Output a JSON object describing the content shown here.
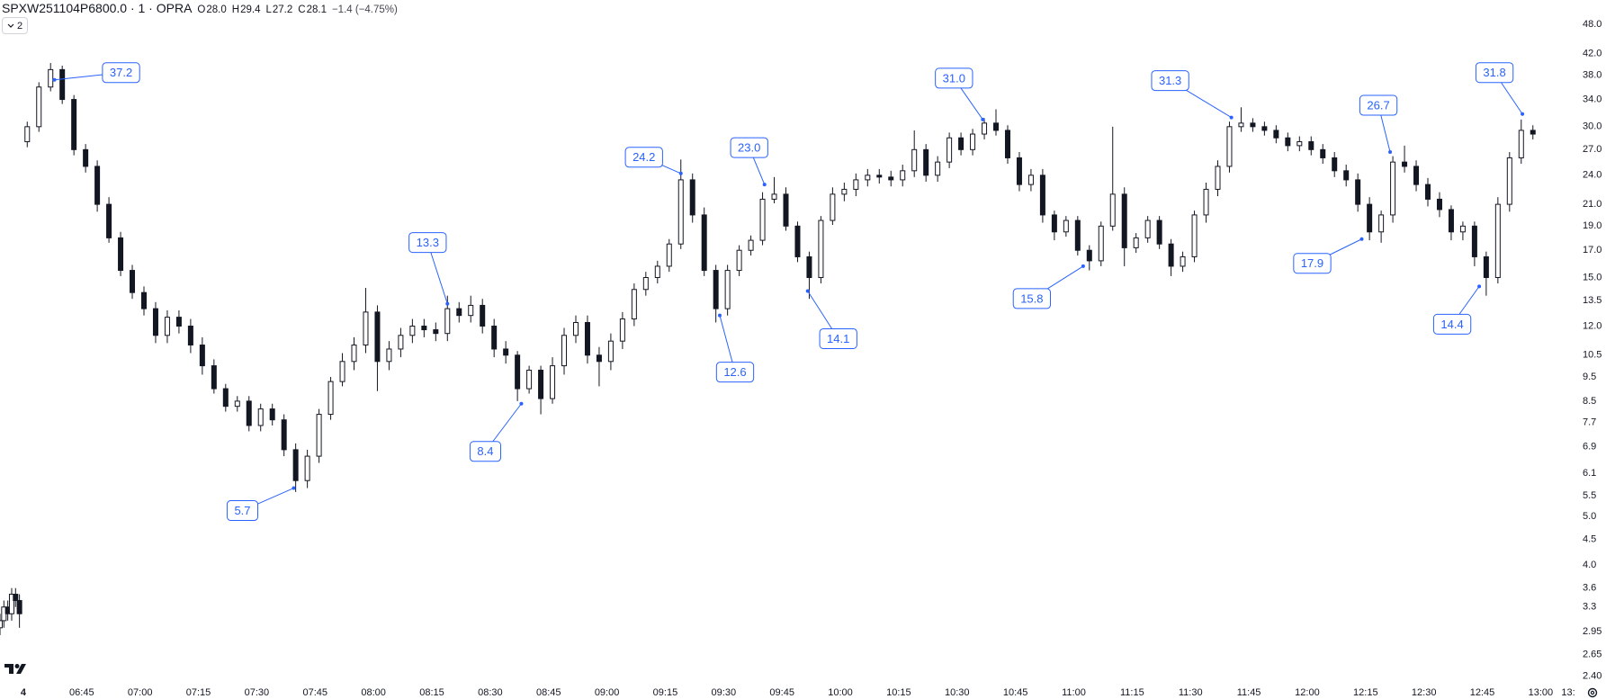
{
  "header": {
    "symbol": "SPXW251104P6800.0 · 1 · OPRA",
    "ohlc": [
      {
        "key": "O",
        "value": "28.0"
      },
      {
        "key": "H",
        "value": "29.4"
      },
      {
        "key": "L",
        "value": "27.2"
      },
      {
        "key": "C",
        "value": "28.1"
      }
    ],
    "change": "−1.4 (−4.75%)",
    "button": "2"
  },
  "chart_data": {
    "type": "candlestick",
    "log_scale": true,
    "grid": false,
    "up_color": "#ffffff",
    "down_color": "#131722",
    "border_color": "#131722",
    "annotation_color": "#2962ff",
    "xlim": [
      384,
      788
    ],
    "ylim": [
      2.32,
      53.7
    ],
    "xticks": [
      {
        "value": 390,
        "label": "4"
      },
      {
        "value": 405,
        "label": "06:45"
      },
      {
        "value": 420,
        "label": "07:00"
      },
      {
        "value": 435,
        "label": "07:15"
      },
      {
        "value": 450,
        "label": "07:30"
      },
      {
        "value": 465,
        "label": "07:45"
      },
      {
        "value": 480,
        "label": "08:00"
      },
      {
        "value": 495,
        "label": "08:15"
      },
      {
        "value": 510,
        "label": "08:30"
      },
      {
        "value": 525,
        "label": "08:45"
      },
      {
        "value": 540,
        "label": "09:00"
      },
      {
        "value": 555,
        "label": "09:15"
      },
      {
        "value": 570,
        "label": "09:30"
      },
      {
        "value": 585,
        "label": "09:45"
      },
      {
        "value": 600,
        "label": "10:00"
      },
      {
        "value": 615,
        "label": "10:15"
      },
      {
        "value": 630,
        "label": "10:30"
      },
      {
        "value": 645,
        "label": "10:45"
      },
      {
        "value": 660,
        "label": "11:00"
      },
      {
        "value": 675,
        "label": "11:15"
      },
      {
        "value": 690,
        "label": "11:30"
      },
      {
        "value": 705,
        "label": "11:45"
      },
      {
        "value": 720,
        "label": "12:00"
      },
      {
        "value": 735,
        "label": "12:15"
      },
      {
        "value": 750,
        "label": "12:30"
      },
      {
        "value": 765,
        "label": "12:45"
      },
      {
        "value": 780,
        "label": "13:00"
      },
      {
        "value": 795,
        "label": "13:"
      }
    ],
    "yticks": [
      {
        "value": 48,
        "label": "48.0"
      },
      {
        "value": 42,
        "label": "42.0"
      },
      {
        "value": 38,
        "label": "38.0"
      },
      {
        "value": 34,
        "label": "34.0"
      },
      {
        "value": 30,
        "label": "30.0"
      },
      {
        "value": 27,
        "label": "27.0"
      },
      {
        "value": 24,
        "label": "24.0"
      },
      {
        "value": 21,
        "label": "21.0"
      },
      {
        "value": 19,
        "label": "19.0"
      },
      {
        "value": 17,
        "label": "17.0"
      },
      {
        "value": 15,
        "label": "15.0"
      },
      13.5,
      {
        "value": 12,
        "label": "12.0"
      },
      10.5,
      9.5,
      8.5,
      7.7,
      6.9,
      6.1,
      5.5,
      {
        "value": 5,
        "label": "5.0"
      },
      4.5,
      {
        "value": 4,
        "label": "4.0"
      },
      3.6,
      3.3,
      2.95,
      2.65,
      {
        "value": 2.4,
        "label": "2.40"
      }
    ],
    "x": [
      384,
      385,
      386,
      387,
      388,
      389,
      391,
      394,
      397,
      400,
      403,
      406,
      409,
      412,
      415,
      418,
      421,
      424,
      427,
      430,
      433,
      436,
      439,
      442,
      445,
      448,
      451,
      454,
      457,
      460,
      463,
      466,
      469,
      472,
      475,
      478,
      481,
      484,
      487,
      490,
      493,
      496,
      499,
      502,
      505,
      508,
      511,
      514,
      517,
      520,
      523,
      526,
      529,
      532,
      535,
      538,
      541,
      544,
      547,
      550,
      553,
      556,
      559,
      562,
      565,
      568,
      571,
      574,
      577,
      580,
      583,
      586,
      589,
      592,
      595,
      598,
      601,
      604,
      607,
      610,
      613,
      616,
      619,
      622,
      625,
      628,
      631,
      634,
      637,
      640,
      643,
      646,
      649,
      652,
      655,
      658,
      661,
      664,
      667,
      670,
      673,
      676,
      679,
      682,
      685,
      688,
      691,
      694,
      697,
      700,
      703,
      706,
      709,
      712,
      715,
      718,
      721,
      724,
      727,
      730,
      733,
      736,
      739,
      742,
      745,
      748,
      751,
      754,
      757,
      760,
      763,
      766,
      769,
      772,
      775,
      778
    ],
    "open": [
      3.0,
      3.1,
      3.3,
      3.2,
      3.5,
      3.4,
      28,
      30,
      36,
      39,
      34,
      27,
      25,
      21,
      18,
      15.5,
      14,
      13,
      11.5,
      12.5,
      12,
      11,
      10,
      9,
      8.3,
      8.5,
      7.6,
      8.2,
      7.8,
      6.8,
      5.9,
      6.6,
      8,
      9.3,
      10.2,
      11,
      12.8,
      10.2,
      10.8,
      11.5,
      12,
      11.8,
      11.6,
      13,
      12.6,
      13.2,
      12,
      10.8,
      10.5,
      9,
      9.8,
      8.6,
      10,
      11.5,
      12.2,
      10.5,
      10.2,
      11.2,
      12.4,
      14.2,
      15,
      15.8,
      17.5,
      23.5,
      20,
      15.5,
      13,
      15.5,
      17,
      17.8,
      21.5,
      22,
      19,
      16.5,
      15,
      19.5,
      22,
      22.5,
      23.5,
      24,
      23.8,
      23.5,
      24.5,
      27,
      24,
      25.5,
      28.5,
      27,
      29,
      30.5,
      29.5,
      26,
      23,
      24,
      20,
      18.5,
      19.5,
      17,
      16.2,
      19,
      22,
      17.2,
      18,
      19.5,
      17.5,
      15.8,
      16.5,
      20,
      22.5,
      25,
      30,
      30.5,
      30,
      29.5,
      28.5,
      27.5,
      28,
      27,
      26,
      24.5,
      23.5,
      21,
      18.5,
      20,
      25.5,
      25,
      23,
      21.5,
      20.5,
      18.5,
      19,
      16.5,
      15,
      21,
      26,
      29.5
    ],
    "high": [
      3.2,
      3.4,
      3.4,
      3.6,
      3.6,
      3.5,
      30.7,
      36.8,
      40.2,
      39.7,
      34.7,
      27.7,
      25.7,
      21.7,
      18.5,
      15.9,
      14.4,
      13.4,
      12.9,
      12.9,
      12.4,
      11.4,
      10.3,
      9.2,
      8.7,
      8.7,
      8.4,
      8.4,
      8.0,
      7.0,
      6.8,
      8.2,
      9.5,
      10.6,
      11.4,
      14.3,
      13.2,
      11.2,
      11.9,
      12.4,
      12.4,
      12.2,
      13.8,
      13.4,
      13.8,
      13.6,
      12.4,
      11.2,
      10.7,
      10.0,
      10.0,
      10.4,
      11.9,
      12.6,
      12.6,
      10.9,
      11.6,
      12.8,
      14.6,
      15.4,
      16.2,
      17.9,
      25.8,
      24.2,
      20.7,
      15.9,
      15.9,
      17.4,
      18.2,
      22.2,
      23.8,
      22.7,
      19.4,
      16.9,
      19.9,
      22.7,
      23.2,
      24.2,
      24.7,
      24.7,
      24.5,
      25.2,
      29.5,
      27.7,
      26.2,
      29.2,
      29.2,
      29.7,
      31.2,
      32.5,
      30.2,
      26.7,
      24.7,
      24.7,
      20.4,
      19.9,
      19.9,
      17.4,
      19.4,
      30.0,
      22.7,
      18.4,
      19.9,
      19.9,
      17.9,
      16.9,
      20.4,
      23.2,
      25.7,
      30.7,
      32.8,
      31.2,
      30.7,
      30.2,
      29.2,
      28.7,
      28.7,
      27.7,
      26.7,
      25.2,
      24.2,
      21.7,
      20.4,
      26.2,
      27.5,
      25.7,
      23.7,
      22.2,
      20.9,
      19.4,
      19.4,
      16.9,
      21.7,
      26.7,
      31.0,
      30.2
    ],
    "low": [
      2.9,
      3.0,
      3.1,
      3.1,
      3.3,
      3.0,
      27.3,
      29.3,
      35.3,
      33.3,
      26.3,
      24.3,
      20.3,
      17.6,
      15.1,
      13.6,
      12.6,
      11.1,
      11.1,
      11.6,
      10.6,
      9.6,
      8.8,
      8.1,
      8.1,
      7.4,
      7.4,
      7.6,
      6.6,
      5.6,
      5.7,
      6.4,
      7.8,
      9.1,
      9.8,
      10.6,
      8.9,
      9.8,
      10.4,
      11.1,
      11.4,
      11.2,
      11.2,
      12.2,
      12.2,
      11.6,
      10.4,
      10.1,
      8.5,
      8.8,
      8.0,
      8.4,
      9.6,
      11.1,
      10.1,
      9.1,
      9.8,
      10.8,
      12.0,
      13.8,
      14.6,
      15.4,
      17.1,
      19.3,
      15.1,
      12.2,
      12.6,
      15.1,
      16.6,
      17.4,
      21.1,
      18.6,
      16.1,
      13.6,
      14.6,
      19.1,
      21.3,
      21.8,
      22.8,
      23.1,
      22.8,
      22.8,
      23.8,
      23.3,
      23.3,
      24.8,
      26.3,
      26.3,
      28.3,
      28.8,
      25.3,
      22.3,
      22.3,
      19.3,
      17.8,
      18.1,
      16.6,
      15.5,
      15.8,
      18.6,
      15.8,
      16.8,
      17.6,
      17.1,
      15.1,
      15.4,
      16.1,
      19.3,
      21.8,
      24.3,
      29.3,
      29.3,
      28.8,
      27.8,
      26.8,
      26.8,
      26.3,
      25.3,
      23.8,
      22.8,
      20.3,
      17.8,
      17.6,
      19.3,
      24.3,
      22.3,
      20.8,
      19.8,
      17.8,
      17.8,
      15.8,
      13.8,
      14.6,
      20.3,
      25.3,
      28.3
    ],
    "close": [
      3.1,
      3.3,
      3.2,
      3.5,
      3.4,
      3.2,
      30,
      36,
      39,
      34,
      27,
      25,
      21,
      18,
      15.5,
      14,
      13,
      11.5,
      12.5,
      12,
      11,
      10,
      9,
      8.3,
      8.5,
      7.6,
      8.2,
      7.8,
      6.8,
      5.9,
      6.6,
      8,
      9.3,
      10.2,
      11,
      12.8,
      10.2,
      10.8,
      11.5,
      12,
      11.8,
      11.6,
      13,
      12.6,
      13.2,
      12,
      10.8,
      10.5,
      9,
      9.8,
      8.6,
      10,
      11.5,
      12.2,
      10.5,
      10.2,
      11.2,
      12.4,
      14.2,
      15,
      15.8,
      17.5,
      23.5,
      20,
      15.5,
      13,
      15.5,
      17,
      17.8,
      21.5,
      22,
      19,
      16.5,
      15,
      19.5,
      22,
      22.5,
      23.5,
      24,
      23.8,
      23.5,
      24.5,
      27,
      24,
      25.5,
      28.5,
      27,
      29,
      30.5,
      29.5,
      26,
      23,
      24,
      20,
      18.5,
      19.5,
      17,
      16.2,
      19,
      22,
      17.2,
      18,
      19.5,
      17.5,
      15.8,
      16.5,
      20,
      22.5,
      25,
      30,
      30.5,
      30,
      29.5,
      28.5,
      27.5,
      28,
      27,
      26,
      24.5,
      23.5,
      21,
      18.5,
      20,
      25.5,
      25,
      23,
      21.5,
      20.5,
      18.5,
      19,
      16.5,
      15,
      21,
      26,
      29.5,
      29
    ],
    "annotations": [
      {
        "x": 398,
        "value": 37.2,
        "label": "37.2"
      },
      {
        "x": 459.5,
        "value": 5.7,
        "label": "5.7"
      },
      {
        "x": 499,
        "value": 13.3,
        "label": "13.3"
      },
      {
        "x": 518,
        "value": 8.4,
        "label": "8.4"
      },
      {
        "x": 559,
        "value": 24.2,
        "label": "24.2"
      },
      {
        "x": 569,
        "value": 12.6,
        "label": "12.6"
      },
      {
        "x": 580.5,
        "value": 23.0,
        "label": "23.0"
      },
      {
        "x": 591.6,
        "value": 14.1,
        "label": "14.1"
      },
      {
        "x": 636.6,
        "value": 31.0,
        "label": "31.0"
      },
      {
        "x": 662.4,
        "value": 15.8,
        "label": "15.8"
      },
      {
        "x": 700.5,
        "value": 31.3,
        "label": "31.3"
      },
      {
        "x": 734,
        "value": 17.9,
        "label": "17.9"
      },
      {
        "x": 741.3,
        "value": 26.7,
        "label": "26.7"
      },
      {
        "x": 764.2,
        "value": 14.4,
        "label": "14.4"
      },
      {
        "x": 775.3,
        "value": 31.8,
        "label": "31.8"
      }
    ]
  }
}
